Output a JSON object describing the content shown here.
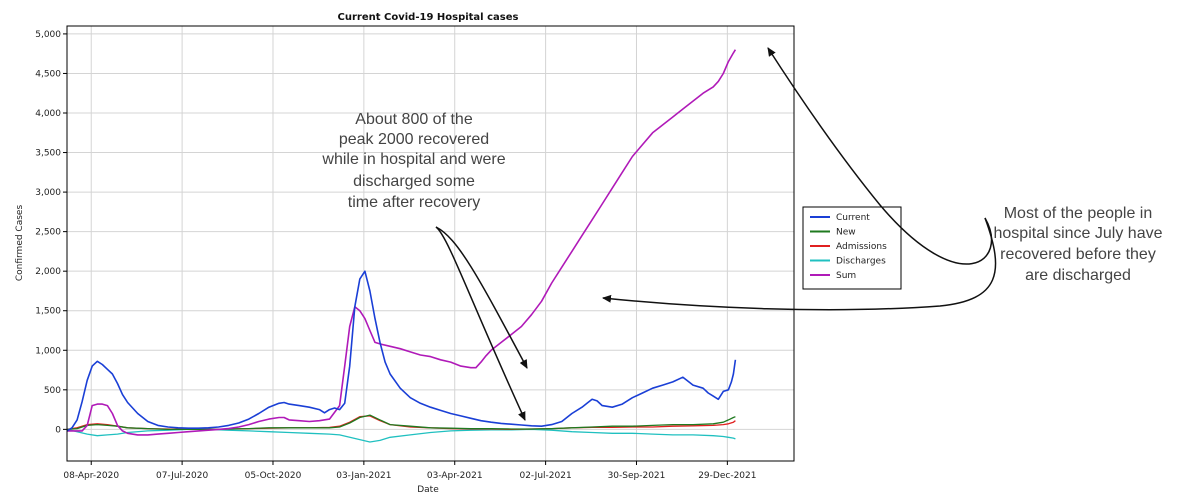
{
  "chart_data": {
    "type": "line",
    "title": "Current Covid-19 Hospital cases",
    "xlabel": "Date",
    "ylabel": "Confirmed Cases",
    "ylim": [
      -400,
      5100
    ],
    "xlim": [
      0,
      720
    ],
    "grid": true,
    "legend_position": "right",
    "y_ticks": [
      0,
      500,
      1000,
      1500,
      2000,
      2500,
      3000,
      3500,
      4000,
      4500,
      5000
    ],
    "y_tick_labels": [
      "0",
      "500",
      "1,000",
      "1,500",
      "2,000",
      "2,500",
      "3,000",
      "3,500",
      "4,000",
      "4,500",
      "5,000"
    ],
    "x_ticks": [
      {
        "day": 24,
        "label": "08-Apr-2020"
      },
      {
        "day": 114,
        "label": "07-Jul-2020"
      },
      {
        "day": 204,
        "label": "05-Oct-2020"
      },
      {
        "day": 294,
        "label": "03-Jan-2021"
      },
      {
        "day": 384,
        "label": "03-Apr-2021"
      },
      {
        "day": 474,
        "label": "02-Jul-2021"
      },
      {
        "day": 564,
        "label": "30-Sep-2021"
      },
      {
        "day": 654,
        "label": "29-Dec-2021"
      }
    ],
    "x_unit": "days since 15-Mar-2020",
    "series": [
      {
        "name": "Current",
        "color": "#1a3fd6",
        "x": [
          0,
          5,
          10,
          15,
          20,
          25,
          30,
          35,
          40,
          45,
          50,
          55,
          60,
          70,
          80,
          90,
          100,
          110,
          120,
          130,
          140,
          150,
          160,
          170,
          180,
          190,
          200,
          210,
          215,
          220,
          230,
          240,
          250,
          255,
          260,
          265,
          270,
          275,
          280,
          285,
          290,
          295,
          300,
          305,
          310,
          315,
          320,
          330,
          340,
          350,
          360,
          370,
          380,
          390,
          400,
          410,
          420,
          430,
          440,
          450,
          460,
          470,
          480,
          490,
          500,
          510,
          515,
          520,
          525,
          530,
          540,
          550,
          560,
          570,
          580,
          590,
          600,
          610,
          620,
          630,
          635,
          640,
          645,
          650,
          655,
          658,
          660,
          662
        ],
        "values": [
          -20,
          20,
          120,
          350,
          620,
          800,
          860,
          820,
          760,
          700,
          580,
          440,
          340,
          200,
          100,
          50,
          30,
          20,
          15,
          15,
          20,
          30,
          50,
          80,
          130,
          200,
          280,
          330,
          340,
          320,
          300,
          280,
          250,
          210,
          250,
          270,
          250,
          330,
          800,
          1550,
          1900,
          2000,
          1750,
          1400,
          1100,
          850,
          700,
          520,
          400,
          330,
          280,
          240,
          200,
          170,
          140,
          110,
          90,
          75,
          65,
          55,
          45,
          40,
          60,
          100,
          200,
          280,
          330,
          380,
          360,
          300,
          280,
          320,
          400,
          460,
          520,
          560,
          600,
          660,
          560,
          520,
          460,
          420,
          380,
          480,
          500,
          600,
          700,
          880
        ]
      },
      {
        "name": "New",
        "color": "#1f7a1f",
        "x": [
          0,
          10,
          20,
          30,
          40,
          50,
          60,
          80,
          100,
          120,
          140,
          160,
          180,
          200,
          220,
          240,
          260,
          270,
          280,
          290,
          300,
          310,
          320,
          340,
          360,
          380,
          400,
          420,
          440,
          460,
          480,
          500,
          520,
          540,
          560,
          580,
          600,
          620,
          640,
          650,
          655,
          660,
          662
        ],
        "values": [
          0,
          10,
          50,
          60,
          50,
          40,
          20,
          10,
          0,
          0,
          0,
          5,
          10,
          20,
          20,
          20,
          20,
          30,
          80,
          150,
          180,
          120,
          60,
          40,
          20,
          15,
          10,
          10,
          5,
          5,
          10,
          20,
          30,
          40,
          40,
          50,
          60,
          60,
          70,
          90,
          120,
          150,
          160
        ]
      },
      {
        "name": "Admissions",
        "color": "#e02020",
        "x": [
          0,
          10,
          20,
          30,
          40,
          50,
          60,
          80,
          100,
          120,
          140,
          160,
          180,
          200,
          220,
          240,
          260,
          270,
          280,
          290,
          300,
          310,
          320,
          340,
          360,
          380,
          400,
          420,
          440,
          460,
          480,
          500,
          520,
          540,
          560,
          580,
          600,
          620,
          640,
          650,
          655,
          660,
          662
        ],
        "values": [
          0,
          20,
          60,
          70,
          60,
          40,
          20,
          10,
          5,
          0,
          0,
          5,
          10,
          15,
          20,
          20,
          25,
          40,
          90,
          160,
          170,
          110,
          60,
          30,
          20,
          10,
          5,
          5,
          0,
          5,
          10,
          20,
          25,
          25,
          30,
          30,
          40,
          45,
          50,
          60,
          70,
          90,
          110
        ]
      },
      {
        "name": "Discharges",
        "color": "#20c0c0",
        "x": [
          0,
          10,
          20,
          30,
          40,
          50,
          60,
          80,
          100,
          120,
          140,
          160,
          180,
          200,
          220,
          240,
          260,
          270,
          280,
          290,
          300,
          310,
          320,
          340,
          360,
          380,
          400,
          420,
          440,
          460,
          480,
          500,
          520,
          540,
          560,
          580,
          600,
          620,
          640,
          650,
          655,
          660,
          662
        ],
        "values": [
          0,
          -30,
          -60,
          -80,
          -70,
          -60,
          -40,
          -20,
          -10,
          0,
          0,
          -10,
          -20,
          -30,
          -40,
          -50,
          -60,
          -70,
          -100,
          -130,
          -160,
          -140,
          -100,
          -70,
          -40,
          -20,
          -10,
          -5,
          -5,
          0,
          -10,
          -30,
          -40,
          -50,
          -50,
          -60,
          -70,
          -70,
          -80,
          -90,
          -100,
          -110,
          -120
        ]
      },
      {
        "name": "Sum",
        "color": "#b01ab8",
        "x": [
          0,
          5,
          10,
          15,
          20,
          25,
          30,
          35,
          40,
          45,
          50,
          55,
          60,
          70,
          80,
          90,
          100,
          110,
          120,
          130,
          140,
          150,
          160,
          170,
          180,
          190,
          200,
          210,
          215,
          220,
          230,
          240,
          250,
          260,
          270,
          275,
          280,
          285,
          290,
          295,
          300,
          305,
          310,
          320,
          330,
          340,
          350,
          360,
          370,
          380,
          390,
          400,
          405,
          410,
          415,
          420,
          430,
          440,
          450,
          460,
          470,
          480,
          490,
          500,
          510,
          520,
          530,
          540,
          550,
          560,
          570,
          580,
          590,
          600,
          610,
          620,
          630,
          640,
          645,
          650,
          655,
          660,
          662
        ],
        "values": [
          -20,
          -20,
          -20,
          -20,
          50,
          300,
          320,
          320,
          300,
          200,
          50,
          -20,
          -50,
          -70,
          -70,
          -60,
          -50,
          -40,
          -30,
          -20,
          -10,
          0,
          10,
          30,
          60,
          100,
          130,
          150,
          150,
          120,
          110,
          100,
          110,
          130,
          300,
          800,
          1300,
          1550,
          1500,
          1400,
          1250,
          1100,
          1080,
          1050,
          1020,
          980,
          940,
          920,
          880,
          850,
          800,
          780,
          780,
          850,
          930,
          1000,
          1100,
          1200,
          1300,
          1450,
          1620,
          1850,
          2050,
          2250,
          2450,
          2650,
          2850,
          3050,
          3250,
          3450,
          3600,
          3750,
          3850,
          3950,
          4050,
          4150,
          4250,
          4330,
          4400,
          4500,
          4650,
          4760,
          4800
        ]
      }
    ]
  },
  "annotations": {
    "middle": [
      "About 800 of the",
      "peak 2000 recovered",
      "while in hospital and were",
      "discharged some",
      "time after recovery"
    ],
    "right": [
      "Most of the people in",
      "hospital since July have",
      "recovered before they",
      "are discharged"
    ]
  }
}
